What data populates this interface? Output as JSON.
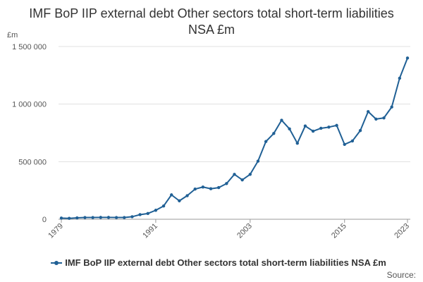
{
  "chart_data": {
    "type": "line",
    "title": "IMF BoP IIP external debt Other sectors total short-term liabilities NSA £m",
    "ylabel": "£m",
    "ylim": [
      0,
      1500000
    ],
    "yticks": [
      0,
      500000,
      1000000,
      1500000
    ],
    "ytick_labels": [
      "0",
      "500 000",
      "1 000 000",
      "1 500 000"
    ],
    "xlim": [
      1979,
      2023
    ],
    "xticks": [
      1979,
      1991,
      2003,
      2015,
      2023
    ],
    "xtick_labels": [
      "1979",
      "1991",
      "2003",
      "2015",
      "2023"
    ],
    "grid": "horizontal",
    "legend_position": "bottom",
    "series": [
      {
        "name": "IMF BoP IIP external debt Other sectors total short-term liabilities NSA £m",
        "color": "#206095",
        "x": [
          1979,
          1980,
          1981,
          1982,
          1983,
          1984,
          1985,
          1986,
          1987,
          1988,
          1989,
          1990,
          1991,
          1992,
          1993,
          1994,
          1995,
          1996,
          1997,
          1998,
          1999,
          2000,
          2001,
          2002,
          2003,
          2004,
          2005,
          2006,
          2007,
          2008,
          2009,
          2010,
          2011,
          2012,
          2013,
          2014,
          2015,
          2016,
          2017,
          2018,
          2019,
          2020,
          2021,
          2022,
          2023
        ],
        "values": [
          10000,
          8000,
          12000,
          15000,
          15000,
          16000,
          16000,
          15000,
          15000,
          22000,
          40000,
          50000,
          78000,
          115000,
          212000,
          160000,
          205000,
          262000,
          280000,
          265000,
          275000,
          310000,
          390000,
          342000,
          390000,
          505000,
          675000,
          745000,
          860000,
          785000,
          660000,
          810000,
          765000,
          790000,
          800000,
          815000,
          650000,
          680000,
          770000,
          935000,
          870000,
          880000,
          975000,
          1225000,
          1400000
        ]
      }
    ]
  },
  "source_label": "Source:"
}
